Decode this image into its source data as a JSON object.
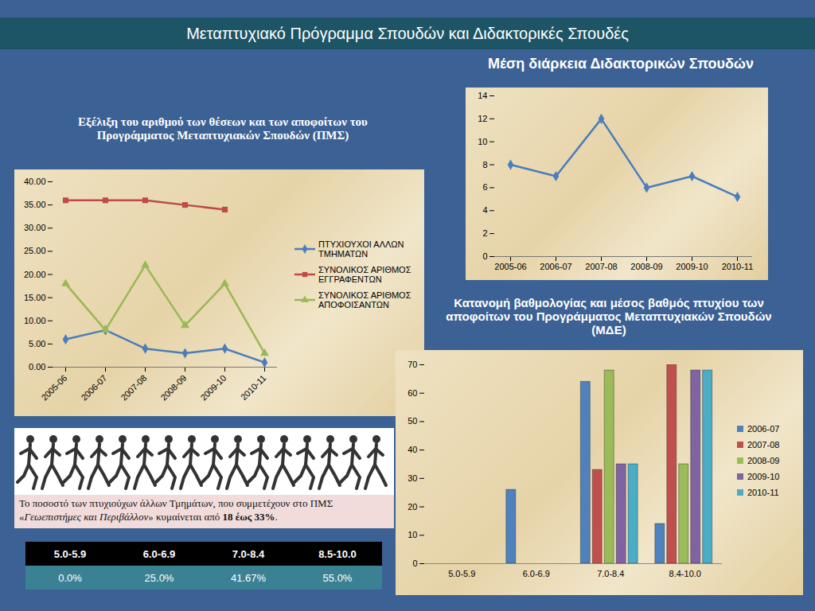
{
  "header": {
    "title": "Μεταπτυχιακό Πρόγραμμα Σπουδών και Διδακτορικές Σπουδές"
  },
  "chart_data": [
    {
      "type": "line",
      "title": "Εξέλιξη του αριθμού των θέσεων και των αποφοίτων του Προγράμματος Μεταπτυχιακών Σπουδών (ΠΜΣ)",
      "categories": [
        "2005-06",
        "2006-07",
        "2007-08",
        "2008-09",
        "2009-10",
        "2010-11"
      ],
      "series": [
        {
          "name": "ΠΤΥΧΙΟΥΧΟΙ ΑΛΛΩΝ ΤΜΗΜΑΤΩΝ",
          "color": "#4a7ebb",
          "marker": "diamond",
          "values": [
            6,
            8,
            4,
            3,
            4,
            1
          ]
        },
        {
          "name": "ΣΥΝΟΛΙΚΟΣ ΑΡΙΘΜΟΣ ΕΓΓΡΑΦΕΝΤΩΝ",
          "color": "#be4b48",
          "marker": "square",
          "values": [
            36,
            36,
            36,
            35,
            34,
            null
          ]
        },
        {
          "name": "ΣΥΝΟΛΙΚΟΣ ΑΡΙΘΜΟΣ ΑΠΟΦΟΙΣΑΝΤΩΝ",
          "color": "#98b954",
          "marker": "triangle",
          "values": [
            18,
            8,
            22,
            9,
            18,
            3
          ]
        }
      ],
      "ylim": [
        0,
        40
      ],
      "yticks": [
        {
          "value": 0,
          "label": "0.00"
        },
        {
          "value": 5,
          "label": "5.00"
        },
        {
          "value": 10,
          "label": "10.00"
        },
        {
          "value": 15,
          "label": "15.00"
        },
        {
          "value": 20,
          "label": "20.00"
        },
        {
          "value": 25,
          "label": "25.00"
        },
        {
          "value": 30,
          "label": "30.00"
        },
        {
          "value": 35,
          "label": "35.00"
        },
        {
          "value": 40,
          "label": "40.00"
        }
      ],
      "legend": "right"
    },
    {
      "type": "line",
      "title": "Μέση διάρκεια Διδακτορικών Σπουδών",
      "categories": [
        "2005-06",
        "2006-07",
        "2007-08",
        "2008-09",
        "2009-10",
        "2010-11"
      ],
      "series": [
        {
          "color": "#4a7ebb",
          "marker": "diamond",
          "values": [
            8,
            7,
            12,
            6,
            7,
            5.2
          ]
        }
      ],
      "ylim": [
        0,
        14
      ],
      "yticks": [
        0,
        2,
        4,
        6,
        8,
        10,
        12,
        14
      ]
    },
    {
      "type": "bar",
      "title": "Κατανομή βαθμολογίας και μέσος βαθμός πτυχίου των αποφοίτων του Προγράμματος Μεταπτυχιακών Σπουδών (ΜΔΕ)",
      "categories": [
        "5.0-5.9",
        "6.0-6.9",
        "7.0-8.4",
        "8.4-10.0"
      ],
      "series": [
        {
          "name": "2006-07",
          "color": "#4f81bd",
          "values": [
            0,
            26,
            64,
            14
          ]
        },
        {
          "name": "2007-08",
          "color": "#c0504d",
          "values": [
            0,
            0,
            33,
            70
          ]
        },
        {
          "name": "2008-09",
          "color": "#9bbb59",
          "values": [
            0,
            0,
            68,
            35
          ]
        },
        {
          "name": "2009-10",
          "color": "#8064a2",
          "values": [
            0,
            0,
            35,
            68
          ]
        },
        {
          "name": "2010-11",
          "color": "#4bacc6",
          "values": [
            0,
            0,
            35,
            68
          ]
        }
      ],
      "ylim": [
        0,
        70
      ],
      "yticks": [
        0,
        10,
        20,
        30,
        40,
        50,
        60,
        70
      ],
      "legend": "right"
    }
  ],
  "caption": [
    "Το ποσοστό των πτυχιούχων άλλων Τμημάτων, που συμμετέχουν στο ΠΜΣ «",
    "Γεωεπιστήμες και Περιβάλλον",
    "» κυμαίνεται από ",
    "18 έως 33%",
    "."
  ],
  "table": {
    "columns": [
      "5.0-5.9",
      "6.0-6.9",
      "7.0-8.4",
      "8.5-10.0"
    ],
    "rows": [
      [
        "0.0%",
        "25.0%",
        "41.67%",
        "55.0%"
      ]
    ]
  }
}
